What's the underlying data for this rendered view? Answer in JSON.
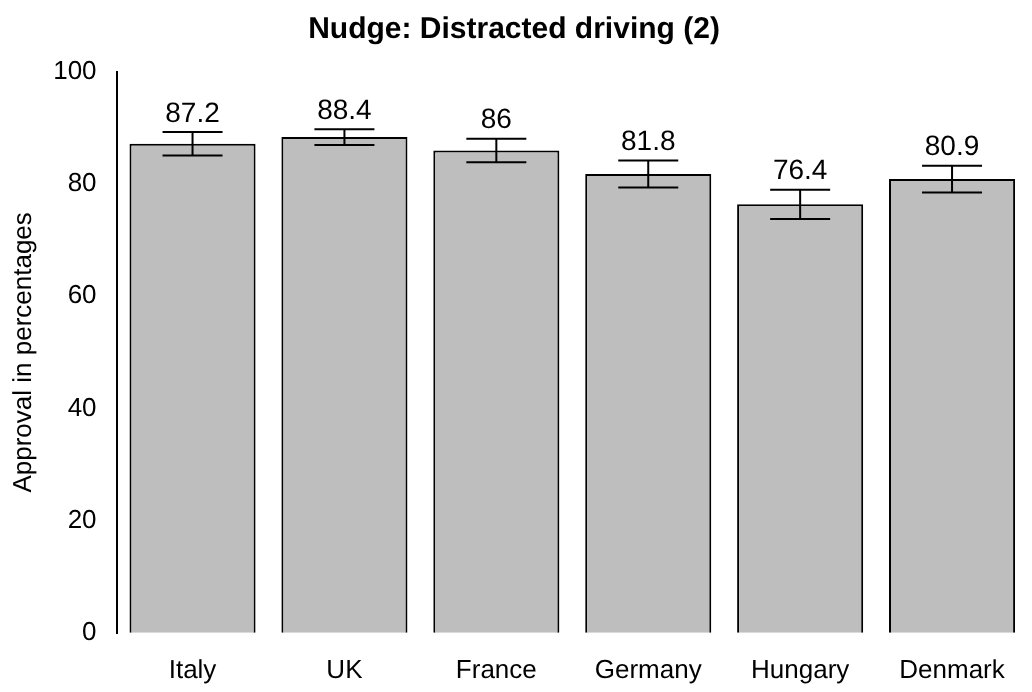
{
  "chart_data": {
    "type": "bar",
    "title": "Nudge: Distracted driving (2)",
    "ylabel": "Approval in percentages",
    "categories": [
      "Italy",
      "UK",
      "France",
      "Germany",
      "Hungary",
      "Denmark"
    ],
    "values": [
      87.2,
      88.4,
      86,
      81.8,
      76.4,
      80.9
    ],
    "errors": [
      2.1,
      1.4,
      2.1,
      2.4,
      2.6,
      2.4
    ],
    "color": "#bebebe",
    "data_labels": true,
    "grid": false,
    "legend": false,
    "ylim": [
      0,
      100
    ],
    "yticks": [
      0,
      20,
      40,
      60,
      80,
      100
    ]
  }
}
